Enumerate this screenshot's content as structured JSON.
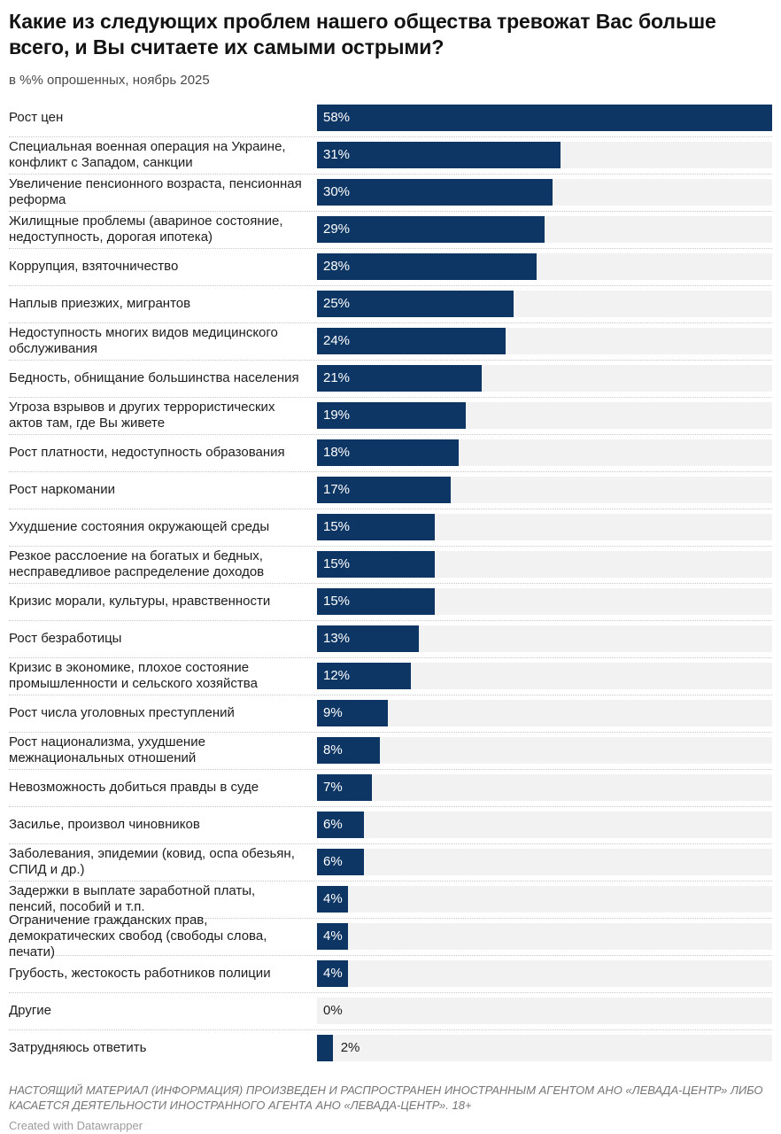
{
  "chart_data": {
    "type": "bar",
    "orientation": "horizontal",
    "title": "Какие из следующих проблем нашего общества тревожат Вас больше всего, и Вы считаете их самыми острыми?",
    "subtitle": "в %% опрошенных, ноябрь 2025",
    "unit": "%",
    "xlim": [
      0,
      58
    ],
    "grid": false,
    "legend": false,
    "categories": [
      "Рост цен",
      "Специальная военная операция на Украине, конфликт с Западом, санкции",
      "Увеличение пенсионного возраста, пенсионная реформа",
      "Жилищные проблемы (авариное состояние, недоступность, дорогая ипотека)",
      "Коррупция, взяточничество",
      "Наплыв приезжих, мигрантов",
      "Недоступность многих видов медицинского обслуживания",
      "Бедность, обнищание большинства населения",
      "Угроза взрывов и других террористических актов там, где Вы живете",
      "Рост платности, недоступность образования",
      "Рост наркомании",
      "Ухудшение состояния окружающей среды",
      "Резкое расслоение на богатых и бедных, несправедливое распределение доходов",
      "Кризис морали, культуры, нравственности",
      "Рост безработицы",
      "Кризис в экономике, плохое состояние промышленности и сельского хозяйства",
      "Рост числа уголовных преступлений",
      "Рост национализма, ухудшение межнациональных отношений",
      "Невозможность добиться правды в суде",
      "Засилье, произвол чиновников",
      "Заболевания, эпидемии (ковид, оспа обезьян, СПИД и др.)",
      "Задержки в выплате заработной платы, пенсий, пособий и т.п.",
      "Ограничение гражданских прав, демократических свобод (свободы слова, печати)",
      "Грубость, жестокость работников полиции",
      "Другие",
      "Затрудняюсь ответить"
    ],
    "values": [
      58,
      31,
      30,
      29,
      28,
      25,
      24,
      21,
      19,
      18,
      17,
      15,
      15,
      15,
      13,
      12,
      9,
      8,
      7,
      6,
      6,
      4,
      4,
      4,
      0,
      2
    ],
    "value_labels": [
      "58%",
      "31%",
      "30%",
      "29%",
      "28%",
      "25%",
      "24%",
      "21%",
      "19%",
      "18%",
      "17%",
      "15%",
      "15%",
      "15%",
      "13%",
      "12%",
      "9%",
      "8%",
      "7%",
      "6%",
      "6%",
      "4%",
      "4%",
      "4%",
      "0%",
      "2%"
    ],
    "colors": {
      "bar": "#0d3664",
      "track": "#f2f2f2",
      "value_inside": "#ffffff",
      "value_outside": "#1d1d1d",
      "separator": "#c9c9c9"
    }
  },
  "footer": {
    "disclaimer": "НАСТОЯЩИЙ МАТЕРИАЛ (ИНФОРМАЦИЯ) ПРОИЗВЕДЕН И РАСПРОСТРАНЕН ИНОСТРАННЫМ АГЕНТОМ АНО «ЛЕВАДА-ЦЕНТР» ЛИБО КАСАЕТСЯ ДЕЯТЕЛЬНОСТИ ИНОСТРАННОГО АГЕНТА АНО «ЛЕВАДА-ЦЕНТР». 18+",
    "attribution": "Created with Datawrapper"
  }
}
